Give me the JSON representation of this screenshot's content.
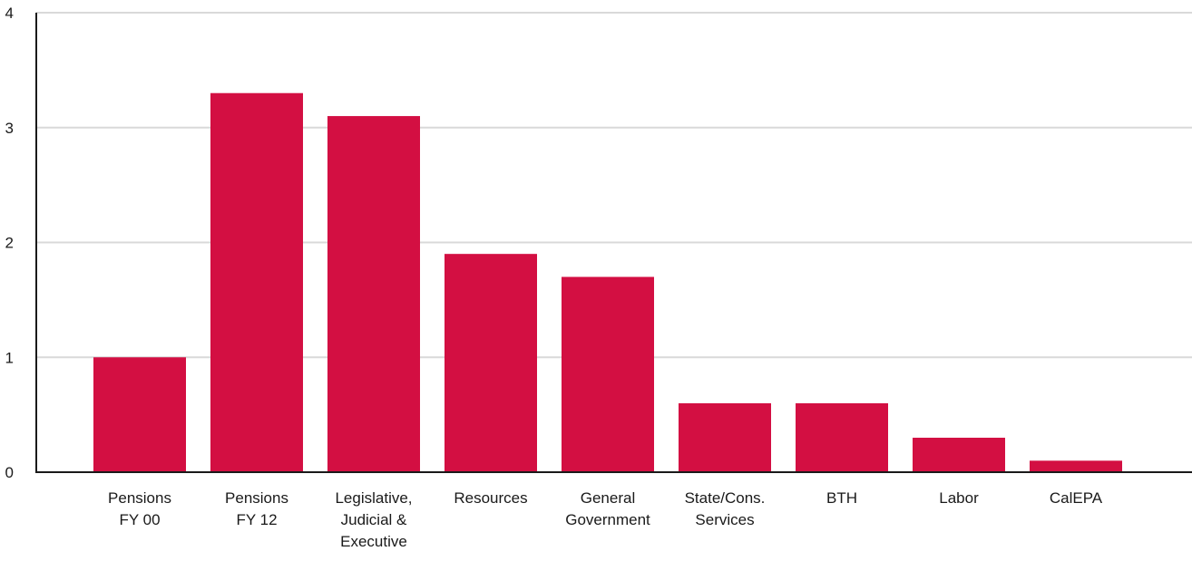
{
  "chart_data": {
    "type": "bar",
    "title": "",
    "xlabel": "",
    "ylabel": "",
    "categories": [
      [
        "Pensions",
        "FY 00"
      ],
      [
        "Pensions",
        "FY 12"
      ],
      [
        "Legislative,",
        "Judicial &",
        "Executive"
      ],
      [
        "Resources"
      ],
      [
        "General",
        "Government"
      ],
      [
        "State/Cons.",
        "Services"
      ],
      [
        "BTH"
      ],
      [
        "Labor"
      ],
      [
        "CalEPA"
      ]
    ],
    "values": [
      1.0,
      3.3,
      3.1,
      1.9,
      1.7,
      0.6,
      0.6,
      0.3,
      0.1
    ],
    "ylim": [
      0,
      4
    ],
    "yticks": [
      "0",
      "1",
      "2",
      "3",
      "4"
    ],
    "grid": true,
    "legend": "none",
    "colors": {
      "bar": "#d30f42",
      "grid": "#d9d9d9",
      "axis": "#1a1a1a"
    }
  }
}
